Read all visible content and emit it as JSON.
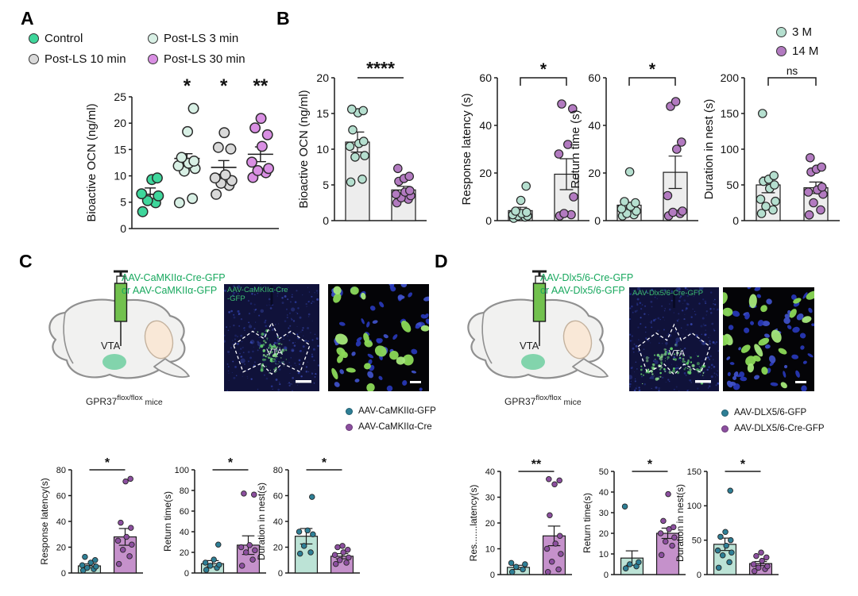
{
  "panels": {
    "A": {
      "label": "A",
      "legend": [
        {
          "label": "Control",
          "color": "#3ed69b"
        },
        {
          "label": "Post-LS 3 min",
          "color": "#d8f0e5"
        },
        {
          "label": "Post-LS 10 min",
          "color": "#d9d9d9"
        },
        {
          "label": "Post-LS 30 min",
          "color": "#d98fe3"
        }
      ]
    },
    "B": {
      "label": "B",
      "legend": [
        {
          "label": "3 M",
          "color": "#b5dfcf"
        },
        {
          "label": "14 M",
          "color": "#b27ac0"
        }
      ]
    },
    "C": {
      "label": "C",
      "injection": {
        "line1": "AAV-CaMKIIα-Cre-GFP",
        "line2": "or AAV-CaMKIIα-GFP"
      },
      "mice": {
        "name": "GPR37",
        "sup": "flox/flox",
        "post": " mice"
      },
      "diagram_region": "VTA",
      "slice_label": {
        "line1": "AAV-CaMKIIα-Cre",
        "line2": "-GFP"
      },
      "slice_region": "VTA",
      "legend": [
        {
          "label": "AAV-CaMKIIα-GFP",
          "color": "#2e7f96"
        },
        {
          "label": "AAV-CaMKIIα-Cre",
          "color": "#8c4f9f"
        }
      ]
    },
    "D": {
      "label": "D",
      "injection": {
        "line1": "AAV-Dlx5/6-Cre-GFP",
        "line2": "or AAV-Dlx5/6-GFP"
      },
      "mice": {
        "name": "GPR37",
        "sup": "flox/flox",
        "post": " mice"
      },
      "diagram_region": "VTA",
      "slice_label": {
        "line1": "AAV-Dlx5/6-Cre-GFP",
        "line2": ""
      },
      "slice_region": "VTA",
      "legend": [
        {
          "label": "AAV-DLX5/6-GFP",
          "color": "#2e7f96"
        },
        {
          "label": "AAV-DLX5/6-Cre-GFP",
          "color": "#8c4f9f"
        }
      ]
    }
  },
  "chart_data": {
    "A": {
      "type": "scatter",
      "ylabel": "Bioactive OCN (ng/ml)",
      "ylim": [
        0,
        25
      ],
      "yticks": [
        0,
        5,
        10,
        15,
        20,
        25
      ],
      "categories": [
        "Control",
        "Post-LS 3 min",
        "Post-LS 10 min",
        "Post-LS 30 min"
      ],
      "groups": [
        {
          "name": "Control",
          "color": "#3ed69b",
          "mean": 6.5,
          "sem": 1.2,
          "sig": "",
          "points": [
            3.2,
            4.9,
            5.3,
            6.2,
            6.6,
            9.3,
            9.6
          ]
        },
        {
          "name": "Post-LS 3 min",
          "color": "#d8f0e5",
          "mean": 13.3,
          "sem": 0.9,
          "sig": "*",
          "points": [
            4.9,
            5.7,
            10.9,
            11.4,
            11.9,
            12.4,
            12.8,
            13.5,
            18.4,
            22.8
          ]
        },
        {
          "name": "Post-LS 10 min",
          "color": "#d9d9d9",
          "mean": 11.6,
          "sem": 1.3,
          "sig": "*",
          "points": [
            6.5,
            8.2,
            8.6,
            9.1,
            9.6,
            10.2,
            15.1,
            15.4,
            18.2
          ]
        },
        {
          "name": "Post-LS 30 min",
          "color": "#d98fe3",
          "mean": 14.1,
          "sem": 1.4,
          "sig": "**",
          "points": [
            9.7,
            10.6,
            11.0,
            11.4,
            12.6,
            15.6,
            17.8,
            19.1,
            20.9
          ]
        }
      ]
    },
    "B1": {
      "type": "bar",
      "ylabel": "Bioactive OCN (ng/ml)",
      "ylim": [
        0,
        20
      ],
      "yticks": [
        0,
        5,
        10,
        15,
        20
      ],
      "sig": "****",
      "sig_style": "line",
      "bar_fill": "#ededed",
      "categories": [
        "3 M",
        "14 M"
      ],
      "series": [
        {
          "name": "3 M",
          "mean": 11.0,
          "sem": 1.4,
          "point_color": "#b5dfcf",
          "points": [
            5.4,
            5.8,
            8.9,
            9.1,
            10.4,
            10.8,
            11.1,
            12.7,
            15.1,
            15.4,
            15.6
          ]
        },
        {
          "name": "14 M",
          "mean": 4.3,
          "sem": 0.5,
          "point_color": "#b27ac0",
          "points": [
            2.5,
            3.0,
            3.2,
            3.5,
            3.7,
            4.0,
            4.2,
            5.5,
            5.9,
            6.2,
            7.3
          ]
        }
      ]
    },
    "B2": {
      "type": "bar",
      "ylabel": "Response latency (s)",
      "ylim": [
        0,
        60
      ],
      "yticks": [
        0,
        20,
        40,
        60
      ],
      "sig": "*",
      "sig_style": "bracket",
      "bar_fill": "#ededed",
      "categories": [
        "3 M",
        "14 M"
      ],
      "series": [
        {
          "name": "3 M",
          "mean": 4.2,
          "sem": 1.4,
          "point_color": "#b5dfcf",
          "points": [
            1,
            1.5,
            2,
            2,
            2.5,
            3,
            3.5,
            4,
            8.5,
            14.5
          ]
        },
        {
          "name": "14 M",
          "mean": 19.5,
          "sem": 6.5,
          "point_color": "#b27ac0",
          "points": [
            2,
            2.5,
            3,
            10,
            28,
            32,
            47,
            49
          ]
        }
      ]
    },
    "B3": {
      "type": "bar",
      "ylabel": "Return time (s)",
      "ylim": [
        0,
        60
      ],
      "yticks": [
        0,
        20,
        40,
        60
      ],
      "sig": "*",
      "sig_style": "bracket",
      "bar_fill": "#ededed",
      "categories": [
        "3 M",
        "14 M"
      ],
      "series": [
        {
          "name": "3 M",
          "mean": 6.5,
          "sem": 1.2,
          "point_color": "#b5dfcf",
          "points": [
            2,
            2.5,
            3,
            4,
            5,
            6,
            7.5,
            8,
            20.5
          ]
        },
        {
          "name": "14 M",
          "mean": 20.3,
          "sem": 6.8,
          "point_color": "#b27ac0",
          "points": [
            2,
            3,
            3.5,
            4,
            10.5,
            30,
            33,
            48,
            50
          ]
        }
      ]
    },
    "B4": {
      "type": "bar",
      "ylabel": "Duration in nest (s)",
      "ylim": [
        0,
        200
      ],
      "yticks": [
        0,
        50,
        100,
        150,
        200
      ],
      "sig": "ns",
      "sig_style": "bracket",
      "bar_fill": "#ededed",
      "categories": [
        "3 M",
        "14 M"
      ],
      "series": [
        {
          "name": "3 M",
          "mean": 50,
          "sem": 11,
          "point_color": "#b5dfcf",
          "points": [
            10,
            15,
            20,
            27,
            30,
            45,
            50,
            55,
            58,
            63,
            150
          ]
        },
        {
          "name": "14 M",
          "mean": 46,
          "sem": 8,
          "point_color": "#b27ac0",
          "points": [
            8,
            15,
            25,
            37,
            40,
            43,
            47,
            68,
            72,
            75,
            88
          ]
        }
      ]
    },
    "C1": {
      "type": "bar",
      "ylabel": "Response latency(s)",
      "ylim": [
        0,
        80
      ],
      "yticks": [
        0,
        20,
        40,
        60,
        80
      ],
      "sig": "*",
      "sig_style": "line",
      "categories": [
        "AAV-CaMKIIα-GFP",
        "AAV-CaMKIIα-Cre"
      ],
      "series": [
        {
          "name": "AAV-CaMKIIα-GFP",
          "fill": "#bce3d6",
          "mean": 5.5,
          "sem": 1.5,
          "point_color": "#2e7f96",
          "points": [
            2,
            3,
            4,
            5,
            6,
            8,
            10,
            12.5
          ]
        },
        {
          "name": "AAV-CaMKIIα-Cre",
          "fill": "#c591cb",
          "mean": 28,
          "sem": 6.5,
          "point_color": "#8c4f9f",
          "points": [
            7,
            13,
            18,
            22,
            25,
            28,
            35,
            39,
            71,
            73
          ]
        }
      ]
    },
    "C2": {
      "type": "bar",
      "ylabel": "Return time(s)",
      "ylim": [
        0,
        100
      ],
      "yticks": [
        0,
        20,
        40,
        60,
        80,
        100
      ],
      "sig": "*",
      "sig_style": "line",
      "categories": [
        "AAV-CaMKIIα-GFP",
        "AAV-CaMKIIα-Cre"
      ],
      "series": [
        {
          "name": "AAV-CaMKIIα-GFP",
          "fill": "#bce3d6",
          "mean": 9,
          "sem": 3,
          "point_color": "#2e7f96",
          "points": [
            3,
            5,
            7,
            8,
            10,
            13,
            27.5
          ]
        },
        {
          "name": "AAV-CaMKIIα-Cre",
          "fill": "#c591cb",
          "mean": 27,
          "sem": 9,
          "point_color": "#8c4f9f",
          "points": [
            7,
            13,
            20,
            22,
            25,
            27,
            76,
            77
          ]
        }
      ]
    },
    "C3": {
      "type": "bar",
      "ylabel": "Duration in nest(s)",
      "ylim": [
        0,
        80
      ],
      "yticks": [
        0,
        20,
        40,
        60,
        80
      ],
      "sig": "*",
      "sig_style": "line",
      "categories": [
        "AAV-CaMKIIα-GFP",
        "AAV-CaMKIIα-Cre"
      ],
      "series": [
        {
          "name": "AAV-CaMKIIα-GFP",
          "fill": "#bce3d6",
          "mean": 28.5,
          "sem": 6,
          "point_color": "#2e7f96",
          "points": [
            15,
            16,
            21,
            30,
            32,
            33,
            59
          ]
        },
        {
          "name": "AAV-CaMKIIα-Cre",
          "fill": "#c591cb",
          "mean": 13,
          "sem": 2,
          "point_color": "#8c4f9f",
          "points": [
            7,
            8,
            10,
            12,
            14,
            16,
            18,
            20,
            21
          ]
        }
      ]
    },
    "D1": {
      "type": "bar",
      "ylabel": "Res.......latency(s)",
      "ylim": [
        0,
        40
      ],
      "yticks": [
        0,
        10,
        20,
        30,
        40
      ],
      "sig": "**",
      "sig_style": "line",
      "categories": [
        "AAV-DLX5/6-GFP",
        "AAV-DLX5/6-Cre-GFP"
      ],
      "series": [
        {
          "name": "AAV-DLX5/6-GFP",
          "fill": "#bce3d6",
          "mean": 2.8,
          "sem": 0.8,
          "point_color": "#2e7f96",
          "points": [
            1,
            2,
            3,
            4,
            4.5
          ]
        },
        {
          "name": "AAV-DLX5/6-Cre-GFP",
          "fill": "#c591cb",
          "mean": 15,
          "sem": 3.8,
          "point_color": "#8c4f9f",
          "points": [
            1,
            2,
            5,
            8,
            10,
            12,
            15,
            23,
            35,
            36.5,
            37
          ]
        }
      ]
    },
    "D2": {
      "type": "bar",
      "ylabel": "Return time(s)",
      "ylim": [
        0,
        50
      ],
      "yticks": [
        0,
        10,
        20,
        30,
        40,
        50
      ],
      "sig": "*",
      "sig_style": "line",
      "categories": [
        "AAV-DLX5/6-GFP",
        "AAV-DLX5/6-Cre-GFP"
      ],
      "series": [
        {
          "name": "AAV-DLX5/6-GFP",
          "fill": "#bce3d6",
          "mean": 8,
          "sem": 3.5,
          "point_color": "#2e7f96",
          "points": [
            3,
            4,
            5,
            6,
            33
          ]
        },
        {
          "name": "AAV-DLX5/6-Cre-GFP",
          "fill": "#c591cb",
          "mean": 20,
          "sem": 2.5,
          "point_color": "#8c4f9f",
          "points": [
            9.5,
            14,
            16,
            18,
            20,
            22,
            23,
            26,
            39
          ]
        }
      ]
    },
    "D3": {
      "type": "bar",
      "ylabel": "Duration in nest(s)",
      "ylim": [
        0,
        150
      ],
      "yticks": [
        0,
        50,
        100,
        150
      ],
      "sig": "*",
      "sig_style": "line",
      "categories": [
        "AAV-DLX5/6-GFP",
        "AAV-DLX5/6-Cre-GFP"
      ],
      "series": [
        {
          "name": "AAV-DLX5/6-GFP",
          "fill": "#bce3d6",
          "mean": 44,
          "sem": 9,
          "point_color": "#2e7f96",
          "points": [
            10,
            18,
            28,
            32,
            35,
            42,
            50,
            55,
            62,
            122
          ]
        },
        {
          "name": "AAV-DLX5/6-Cre-GFP",
          "fill": "#c591cb",
          "mean": 16,
          "sem": 3,
          "point_color": "#8c4f9f",
          "points": [
            5,
            8,
            10,
            12,
            15,
            20,
            25,
            27,
            32
          ]
        }
      ]
    }
  }
}
